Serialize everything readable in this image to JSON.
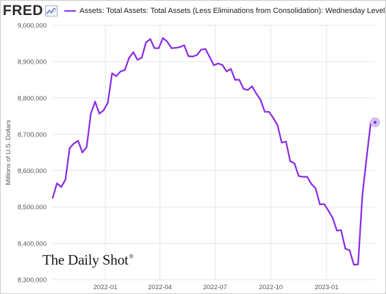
{
  "header": {
    "logo": "FRED",
    "logo_mark": "fred-graph-icon",
    "legend_label": "Assets: Total Assets: Total Assets (Less Eliminations from Consolidation): Wednesday Level"
  },
  "watermark": {
    "text": "The Daily Shot",
    "mark": "®"
  },
  "colors": {
    "series": "#8b2be2",
    "grid": "#e4e4e4",
    "end_marker": "#d7c3f0"
  },
  "chart_data": {
    "type": "line",
    "title": "",
    "xlabel": "",
    "ylabel": "Millions of U.S. Dollars",
    "ylim": [
      8300000,
      9000000
    ],
    "yticks": [
      8300000,
      8400000,
      8500000,
      8600000,
      8700000,
      8800000,
      8900000,
      9000000
    ],
    "ytick_labels": [
      "8,300,000",
      "8,400,000",
      "8,500,000",
      "8,600,000",
      "8,700,000",
      "8,800,000",
      "8,900,000",
      "9,000,000"
    ],
    "xlim": [
      "2021-10-06",
      "2023-03-22"
    ],
    "xticks": [
      "2022-01-01",
      "2022-04-01",
      "2022-07-01",
      "2022-10-01",
      "2023-01-01"
    ],
    "xtick_labels": [
      "2022-01",
      "2022-04",
      "2022-07",
      "2022-10",
      "2023-01"
    ],
    "grid": true,
    "series": [
      {
        "name": "Assets: Total Assets: Total Assets (Less Eliminations from Consolidation): Wednesday Level",
        "x": [
          "2021-10-06",
          "2021-10-13",
          "2021-10-20",
          "2021-10-27",
          "2021-11-03",
          "2021-11-10",
          "2021-11-17",
          "2021-11-24",
          "2021-12-01",
          "2021-12-08",
          "2021-12-15",
          "2021-12-22",
          "2021-12-29",
          "2022-01-05",
          "2022-01-12",
          "2022-01-19",
          "2022-01-26",
          "2022-02-02",
          "2022-02-09",
          "2022-02-16",
          "2022-02-23",
          "2022-03-02",
          "2022-03-09",
          "2022-03-16",
          "2022-03-23",
          "2022-03-30",
          "2022-04-06",
          "2022-04-13",
          "2022-04-20",
          "2022-04-27",
          "2022-05-04",
          "2022-05-11",
          "2022-05-18",
          "2022-05-25",
          "2022-06-01",
          "2022-06-08",
          "2022-06-15",
          "2022-06-22",
          "2022-06-29",
          "2022-07-06",
          "2022-07-13",
          "2022-07-20",
          "2022-07-27",
          "2022-08-03",
          "2022-08-10",
          "2022-08-17",
          "2022-08-24",
          "2022-08-31",
          "2022-09-07",
          "2022-09-14",
          "2022-09-21",
          "2022-09-28",
          "2022-10-05",
          "2022-10-12",
          "2022-10-19",
          "2022-10-26",
          "2022-11-02",
          "2022-11-09",
          "2022-11-16",
          "2022-11-23",
          "2022-11-30",
          "2022-12-07",
          "2022-12-14",
          "2022-12-21",
          "2022-12-28",
          "2023-01-04",
          "2023-01-11",
          "2023-01-18",
          "2023-01-25",
          "2023-02-01",
          "2023-02-08",
          "2023-02-15",
          "2023-02-22",
          "2023-03-01",
          "2023-03-08",
          "2023-03-15",
          "2023-03-22"
        ],
        "values": [
          8525000,
          8565000,
          8555000,
          8575000,
          8662000,
          8675000,
          8682000,
          8650000,
          8665000,
          8757000,
          8790000,
          8757000,
          8766000,
          8787000,
          8868000,
          8860000,
          8873000,
          8877000,
          8910000,
          8926000,
          8905000,
          8911000,
          8953000,
          8962000,
          8937000,
          8937000,
          8965000,
          8955000,
          8937000,
          8938000,
          8940000,
          8945000,
          8915000,
          8914000,
          8918000,
          8933000,
          8935000,
          8913000,
          8890000,
          8895000,
          8891000,
          8873000,
          8880000,
          8850000,
          8850000,
          8825000,
          8822000,
          8832000,
          8812000,
          8795000,
          8762000,
          8762000,
          8745000,
          8725000,
          8677000,
          8680000,
          8626000,
          8620000,
          8585000,
          8583000,
          8583000,
          8563000,
          8551000,
          8507000,
          8508000,
          8490000,
          8470000,
          8435000,
          8436000,
          8385000,
          8381000,
          8341000,
          8342000,
          8530000,
          8635000,
          8733000,
          8733000
        ]
      }
    ]
  }
}
